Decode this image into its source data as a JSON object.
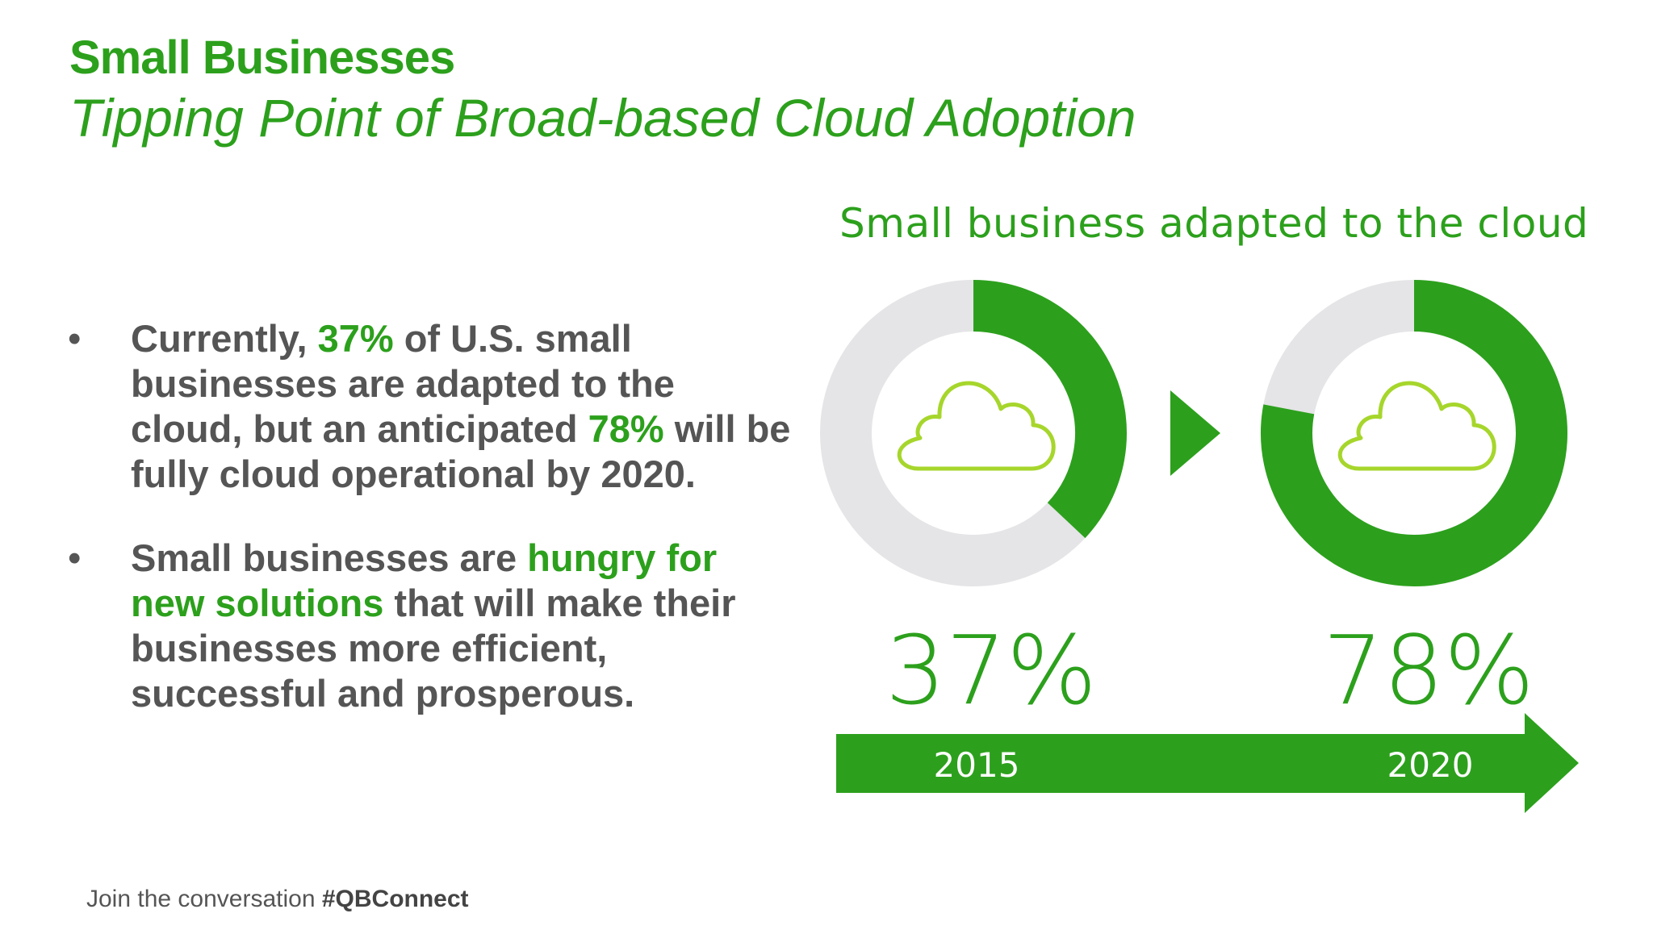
{
  "header": {
    "title": "Small Businesses",
    "subtitle": "Tipping Point of Broad-based Cloud Adoption"
  },
  "bullets": [
    {
      "parts": [
        {
          "text": "Currently, ",
          "hl": false
        },
        {
          "text": "37%",
          "hl": true
        },
        {
          "text": " of U.S. small businesses are adapted to the cloud, but an anticipated ",
          "hl": false
        },
        {
          "text": "78%",
          "hl": true
        },
        {
          "text": " will be fully cloud operational by 2020.",
          "hl": false
        }
      ]
    },
    {
      "parts": [
        {
          "text": "Small businesses are ",
          "hl": false
        },
        {
          "text": "hungry for new solutions",
          "hl": true
        },
        {
          "text": " that will make their businesses more efficient, successful and prosperous.",
          "hl": false
        }
      ]
    }
  ],
  "footer": {
    "prefix": "Join the conversation ",
    "hashtag": "#QBConnect"
  },
  "colors": {
    "accent": "#2ca01c",
    "track": "#e5e4e6",
    "cloud": "#a6d62c",
    "text": "#555555"
  },
  "chart_data": {
    "type": "pie",
    "title": "Small business adapted to the cloud",
    "series": [
      {
        "category": "2015",
        "value": 37,
        "label": "37%"
      },
      {
        "category": "2020",
        "value": 78,
        "label": "78%"
      }
    ],
    "icon": "cloud-icon"
  }
}
